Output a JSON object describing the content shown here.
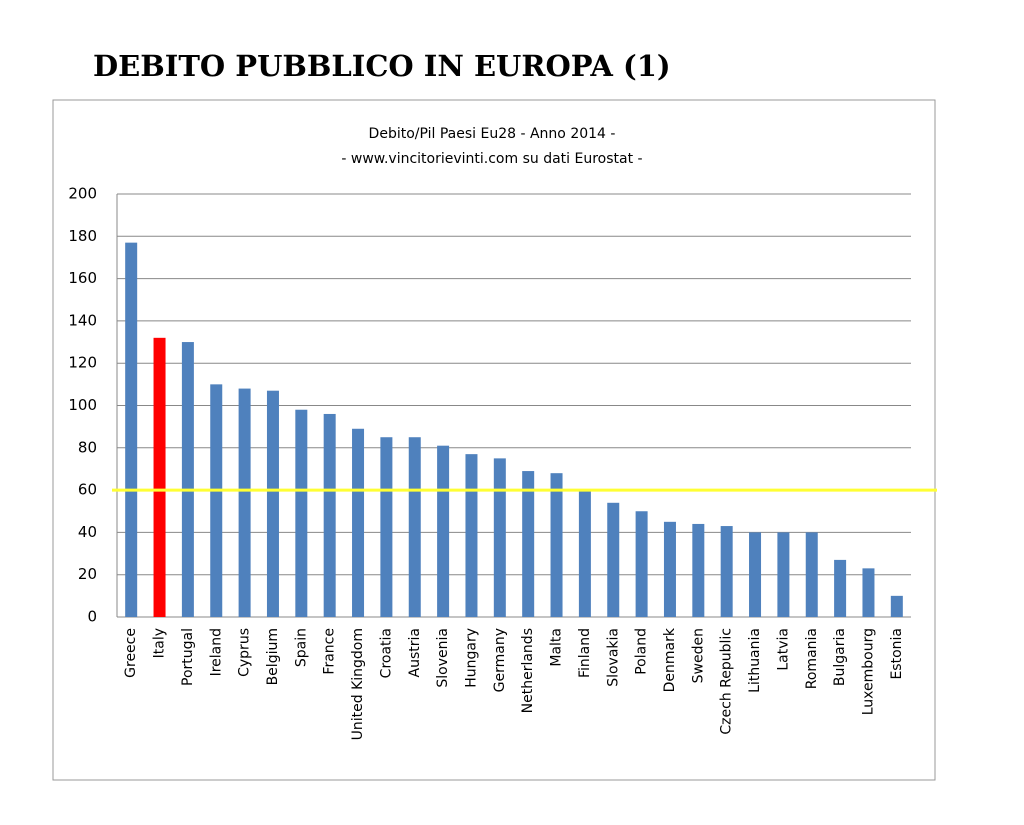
{
  "heading": "DEBITO PUBBLICO IN EUROPA (1)",
  "chart_data": {
    "type": "bar",
    "title": "Debito/Pil Paesi Eu28  - Anno 2014 -",
    "subtitle": "- www.vincitorievinti.com su dati Eurostat -",
    "categories": [
      "Greece",
      "Italy",
      "Portugal",
      "Ireland",
      "Cyprus",
      "Belgium",
      "Spain",
      "France",
      "United Kingdom",
      "Croatia",
      "Austria",
      "Slovenia",
      "Hungary",
      "Germany",
      "Netherlands",
      "Malta",
      "Finland",
      "Slovakia",
      "Poland",
      "Denmark",
      "Sweden",
      "Czech Republic",
      "Lithuania",
      "Latvia",
      "Romania",
      "Bulgaria",
      "Luxembourg",
      "Estonia"
    ],
    "values": [
      177,
      132,
      130,
      110,
      108,
      107,
      98,
      96,
      89,
      85,
      85,
      81,
      77,
      75,
      69,
      68,
      60,
      54,
      50,
      45,
      44,
      43,
      40,
      40,
      40,
      27,
      23,
      10
    ],
    "color": "#4f81bd",
    "highlight": {
      "index": 1,
      "color": "#ff0000"
    },
    "reference_line": {
      "value": 60,
      "color": "#ffff33"
    },
    "ylim": [
      0,
      200
    ],
    "yticks": [
      0,
      20,
      40,
      60,
      80,
      100,
      120,
      140,
      160,
      180,
      200
    ],
    "grid": true
  }
}
